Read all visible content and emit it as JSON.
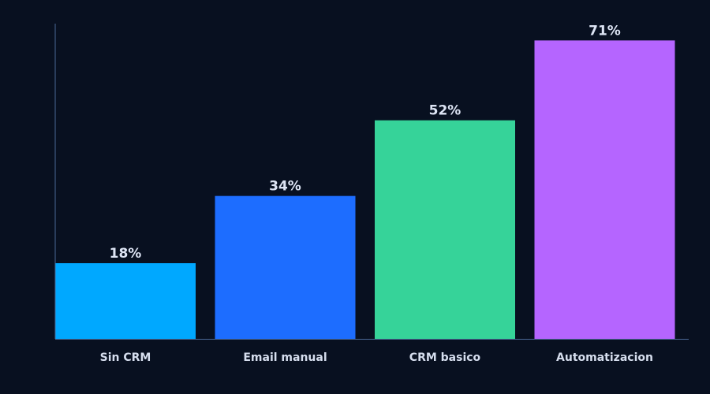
{
  "chart_data": {
    "type": "bar",
    "title": "",
    "xlabel": "",
    "ylabel": "",
    "categories": [
      "Sin CRM",
      "Email manual",
      "CRM basico",
      "Automatizacion"
    ],
    "values": [
      18,
      34,
      52,
      71
    ],
    "value_labels": [
      "18%",
      "34%",
      "52%",
      "71%"
    ],
    "ylim": [
      0,
      75
    ],
    "grid": false,
    "legend": "none",
    "colors": [
      "#00a8ff",
      "#1d6dff",
      "#36d399",
      "#b565ff"
    ]
  }
}
